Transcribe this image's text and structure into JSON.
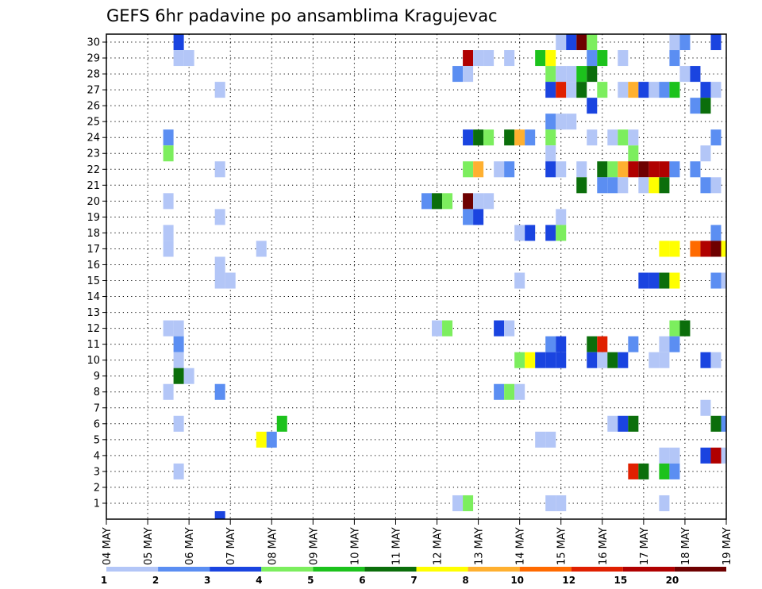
{
  "chart_data": {
    "type": "heatmap",
    "title": "GEFS 6hr padavine po ansamblima Kragujevac",
    "xlabel": "",
    "ylabel": "",
    "x_tick_labels": [
      "04 MAY",
      "05 MAY",
      "06 MAY",
      "07 MAY",
      "08 MAY",
      "09 MAY",
      "10 MAY",
      "11 MAY",
      "12 MAY",
      "13 MAY",
      "14 MAY",
      "15 MAY",
      "16 MAY",
      "17 MAY",
      "18 MAY",
      "19 MAY"
    ],
    "y_tick_labels": [
      "1",
      "2",
      "3",
      "4",
      "5",
      "6",
      "7",
      "8",
      "9",
      "10",
      "11",
      "12",
      "13",
      "14",
      "15",
      "16",
      "17",
      "18",
      "19",
      "20",
      "21",
      "22",
      "23",
      "24",
      "25",
      "26",
      "27",
      "28",
      "29",
      "30"
    ],
    "x_unit": "6-hour step from 04 MAY 00",
    "xlim": [
      0,
      60
    ],
    "ylim": [
      0,
      30
    ],
    "grid": "dotted",
    "colorbar": {
      "placement": "bottom",
      "levels": [
        1,
        2,
        3,
        4,
        5,
        6,
        7,
        8,
        10,
        12,
        15,
        20
      ],
      "labels": [
        "1",
        "2",
        "3",
        "4",
        "5",
        "6",
        "7",
        "8",
        "10",
        "12",
        "15",
        "20"
      ],
      "colors": [
        "#b3c6f7",
        "#5b8ef2",
        "#1a44e0",
        "#7cee5e",
        "#1cc21c",
        "#0b6e0b",
        "#ffff00",
        "#ffb030",
        "#ff6a00",
        "#e02000",
        "#b00000",
        "#6e0000"
      ]
    },
    "cells_note": "each cell: [x step index, member, color class 0-11]",
    "cells": [
      [
        7,
        30,
        2
      ],
      [
        44,
        30,
        0
      ],
      [
        45,
        30,
        2
      ],
      [
        46,
        30,
        11
      ],
      [
        47,
        30,
        3
      ],
      [
        55,
        30,
        0
      ],
      [
        56,
        30,
        1
      ],
      [
        59,
        30,
        2
      ],
      [
        7,
        29,
        0
      ],
      [
        8,
        29,
        0
      ],
      [
        35,
        29,
        10
      ],
      [
        36,
        29,
        0
      ],
      [
        37,
        29,
        0
      ],
      [
        39,
        29,
        0
      ],
      [
        42,
        29,
        4
      ],
      [
        43,
        29,
        6
      ],
      [
        47,
        29,
        1
      ],
      [
        48,
        29,
        4
      ],
      [
        50,
        29,
        0
      ],
      [
        55,
        29,
        1
      ],
      [
        34,
        28,
        1
      ],
      [
        35,
        28,
        0
      ],
      [
        43,
        28,
        3
      ],
      [
        44,
        28,
        0
      ],
      [
        45,
        28,
        0
      ],
      [
        46,
        28,
        4
      ],
      [
        47,
        28,
        5
      ],
      [
        56,
        28,
        0
      ],
      [
        57,
        28,
        2
      ],
      [
        11,
        27,
        0
      ],
      [
        43,
        27,
        2
      ],
      [
        44,
        27,
        9
      ],
      [
        45,
        27,
        0
      ],
      [
        46,
        27,
        5
      ],
      [
        48,
        27,
        3
      ],
      [
        50,
        27,
        0
      ],
      [
        51,
        27,
        7
      ],
      [
        52,
        27,
        2
      ],
      [
        53,
        27,
        0
      ],
      [
        54,
        27,
        1
      ],
      [
        55,
        27,
        4
      ],
      [
        58,
        27,
        2
      ],
      [
        59,
        27,
        0
      ],
      [
        47,
        26,
        2
      ],
      [
        57,
        26,
        1
      ],
      [
        58,
        26,
        5
      ],
      [
        43,
        25,
        1
      ],
      [
        44,
        25,
        0
      ],
      [
        45,
        25,
        0
      ],
      [
        6,
        24,
        1
      ],
      [
        35,
        24,
        2
      ],
      [
        36,
        24,
        5
      ],
      [
        37,
        24,
        3
      ],
      [
        39,
        24,
        5
      ],
      [
        40,
        24,
        7
      ],
      [
        41,
        24,
        1
      ],
      [
        43,
        24,
        3
      ],
      [
        47,
        24,
        0
      ],
      [
        49,
        24,
        0
      ],
      [
        50,
        24,
        3
      ],
      [
        51,
        24,
        0
      ],
      [
        59,
        24,
        1
      ],
      [
        6,
        23,
        3
      ],
      [
        43,
        23,
        0
      ],
      [
        51,
        23,
        3
      ],
      [
        58,
        23,
        0
      ],
      [
        11,
        22,
        0
      ],
      [
        35,
        22,
        3
      ],
      [
        36,
        22,
        7
      ],
      [
        38,
        22,
        0
      ],
      [
        39,
        22,
        1
      ],
      [
        43,
        22,
        2
      ],
      [
        44,
        22,
        0
      ],
      [
        46,
        22,
        0
      ],
      [
        48,
        22,
        5
      ],
      [
        49,
        22,
        3
      ],
      [
        50,
        22,
        7
      ],
      [
        51,
        22,
        10
      ],
      [
        52,
        22,
        11
      ],
      [
        53,
        22,
        10
      ],
      [
        54,
        22,
        10
      ],
      [
        55,
        22,
        1
      ],
      [
        57,
        22,
        1
      ],
      [
        46,
        21,
        5
      ],
      [
        48,
        21,
        1
      ],
      [
        49,
        21,
        1
      ],
      [
        50,
        21,
        0
      ],
      [
        52,
        21,
        0
      ],
      [
        53,
        21,
        6
      ],
      [
        54,
        21,
        5
      ],
      [
        58,
        21,
        1
      ],
      [
        59,
        21,
        0
      ],
      [
        6,
        20,
        0
      ],
      [
        31,
        20,
        1
      ],
      [
        32,
        20,
        5
      ],
      [
        33,
        20,
        3
      ],
      [
        35,
        20,
        11
      ],
      [
        36,
        20,
        0
      ],
      [
        37,
        20,
        0
      ],
      [
        11,
        19,
        0
      ],
      [
        35,
        19,
        1
      ],
      [
        36,
        19,
        2
      ],
      [
        44,
        19,
        0
      ],
      [
        6,
        18,
        0
      ],
      [
        40,
        18,
        0
      ],
      [
        41,
        18,
        2
      ],
      [
        43,
        18,
        2
      ],
      [
        44,
        18,
        3
      ],
      [
        59,
        18,
        1
      ],
      [
        6,
        17,
        0
      ],
      [
        15,
        17,
        0
      ],
      [
        54,
        17,
        6
      ],
      [
        55,
        17,
        6
      ],
      [
        57,
        17,
        8
      ],
      [
        58,
        17,
        10
      ],
      [
        59,
        17,
        11
      ],
      [
        60,
        17,
        6
      ],
      [
        11,
        16,
        0
      ],
      [
        11,
        15,
        0
      ],
      [
        12,
        15,
        0
      ],
      [
        40,
        15,
        0
      ],
      [
        52,
        15,
        2
      ],
      [
        53,
        15,
        2
      ],
      [
        54,
        15,
        5
      ],
      [
        55,
        15,
        6
      ],
      [
        59,
        15,
        1
      ],
      [
        60,
        15,
        0
      ],
      [
        6,
        12,
        0
      ],
      [
        7,
        12,
        0
      ],
      [
        32,
        12,
        0
      ],
      [
        33,
        12,
        3
      ],
      [
        38,
        12,
        2
      ],
      [
        39,
        12,
        0
      ],
      [
        55,
        12,
        3
      ],
      [
        56,
        12,
        5
      ],
      [
        7,
        11,
        1
      ],
      [
        43,
        11,
        1
      ],
      [
        44,
        11,
        2
      ],
      [
        47,
        11,
        5
      ],
      [
        48,
        11,
        9
      ],
      [
        51,
        11,
        1
      ],
      [
        54,
        11,
        0
      ],
      [
        55,
        11,
        1
      ],
      [
        7,
        10,
        0
      ],
      [
        40,
        10,
        3
      ],
      [
        41,
        10,
        6
      ],
      [
        42,
        10,
        2
      ],
      [
        43,
        10,
        2
      ],
      [
        44,
        10,
        2
      ],
      [
        47,
        10,
        2
      ],
      [
        48,
        10,
        0
      ],
      [
        49,
        10,
        5
      ],
      [
        50,
        10,
        2
      ],
      [
        53,
        10,
        0
      ],
      [
        54,
        10,
        0
      ],
      [
        58,
        10,
        2
      ],
      [
        59,
        10,
        0
      ],
      [
        7,
        9,
        5
      ],
      [
        8,
        9,
        0
      ],
      [
        6,
        8,
        0
      ],
      [
        11,
        8,
        1
      ],
      [
        38,
        8,
        1
      ],
      [
        39,
        8,
        3
      ],
      [
        40,
        8,
        0
      ],
      [
        58,
        7,
        0
      ],
      [
        7,
        6,
        0
      ],
      [
        17,
        6,
        4
      ],
      [
        49,
        6,
        0
      ],
      [
        50,
        6,
        2
      ],
      [
        51,
        6,
        5
      ],
      [
        59,
        6,
        5
      ],
      [
        60,
        6,
        1
      ],
      [
        15,
        5,
        6
      ],
      [
        16,
        5,
        1
      ],
      [
        42,
        5,
        0
      ],
      [
        43,
        5,
        0
      ],
      [
        54,
        4,
        0
      ],
      [
        55,
        4,
        0
      ],
      [
        58,
        4,
        2
      ],
      [
        59,
        4,
        10
      ],
      [
        60,
        4,
        0
      ],
      [
        7,
        3,
        0
      ],
      [
        51,
        3,
        9
      ],
      [
        52,
        3,
        5
      ],
      [
        54,
        3,
        4
      ],
      [
        55,
        3,
        1
      ],
      [
        34,
        1,
        0
      ],
      [
        35,
        1,
        3
      ],
      [
        43,
        1,
        0
      ],
      [
        44,
        1,
        0
      ],
      [
        54,
        1,
        0
      ],
      [
        11,
        0,
        2
      ]
    ]
  }
}
